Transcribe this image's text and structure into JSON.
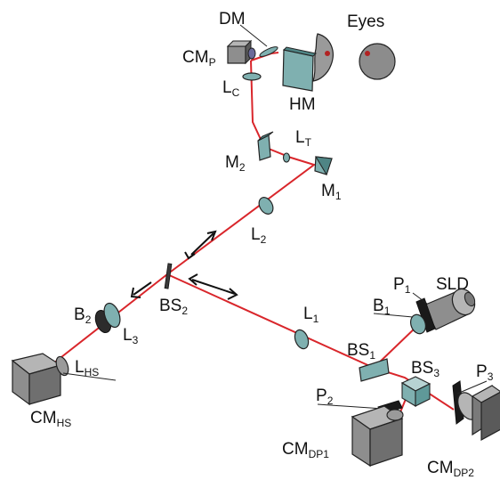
{
  "diagram": {
    "labels": {
      "dm": "DM",
      "eyes": "Eyes",
      "cmp": {
        "main": "CM",
        "sub": "P"
      },
      "lc": {
        "main": "L",
        "sub": "C"
      },
      "hm": "HM",
      "lt": {
        "main": "L",
        "sub": "T"
      },
      "m2": {
        "main": "M",
        "sub": "2"
      },
      "m1": {
        "main": "M",
        "sub": "1"
      },
      "l2": {
        "main": "L",
        "sub": "2"
      },
      "bs2": {
        "main": "BS",
        "sub": "2"
      },
      "b2": {
        "main": "B",
        "sub": "2"
      },
      "l3": {
        "main": "L",
        "sub": "3"
      },
      "lhs": {
        "main": "L",
        "sub": "HS"
      },
      "cmhs": {
        "main": "CM",
        "sub": "HS"
      },
      "l1": {
        "main": "L",
        "sub": "1"
      },
      "p1": {
        "main": "P",
        "sub": "1"
      },
      "sld": "SLD",
      "b1": {
        "main": "B",
        "sub": "1"
      },
      "bs1": {
        "main": "BS",
        "sub": "1"
      },
      "bs3": {
        "main": "BS",
        "sub": "3"
      },
      "p3": {
        "main": "P",
        "sub": "3"
      },
      "p2": {
        "main": "P",
        "sub": "2"
      },
      "cmdp1": {
        "main": "CM",
        "sub": "DP1"
      },
      "cmdp2": {
        "main": "CM",
        "sub": "DP2"
      }
    },
    "colors": {
      "beam": "#d9262b",
      "optic": "#7fb0b0",
      "optic_dark": "#4f8585",
      "camera": "#8e8e8e",
      "camera_dark": "#5a5a5a",
      "outline": "#222222"
    }
  }
}
